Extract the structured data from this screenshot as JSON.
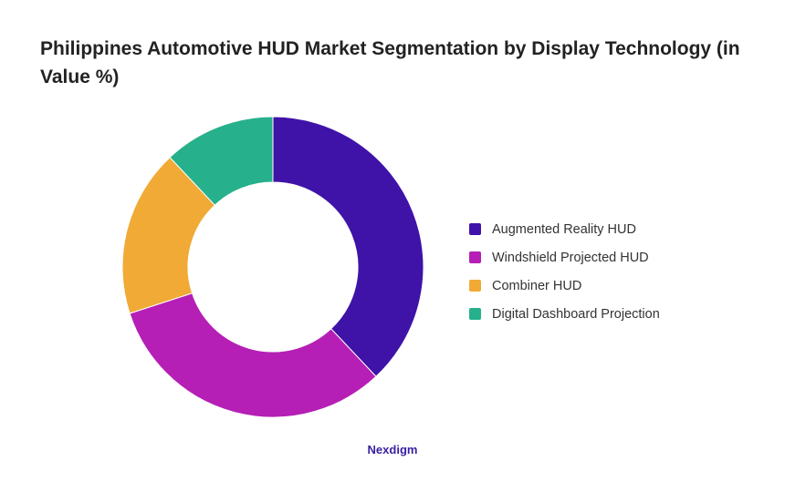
{
  "title": "Philippines Automotive HUD Market Segmentation by Display Technology (in Value %)",
  "brand": "Nexdigm",
  "chart_data": {
    "type": "pie",
    "variant": "donut",
    "title": "Philippines Automotive HUD Market Segmentation by Display Technology (in Value %)",
    "categories": [
      "Augmented Reality HUD",
      "Windshield Projected HUD",
      "Combiner HUD",
      "Digital Dashboard Projection"
    ],
    "values": [
      38,
      32,
      18,
      12
    ],
    "colors": [
      "#3f12a8",
      "#b51fb5",
      "#f0aa35",
      "#26b08c"
    ],
    "legend_position": "right"
  }
}
